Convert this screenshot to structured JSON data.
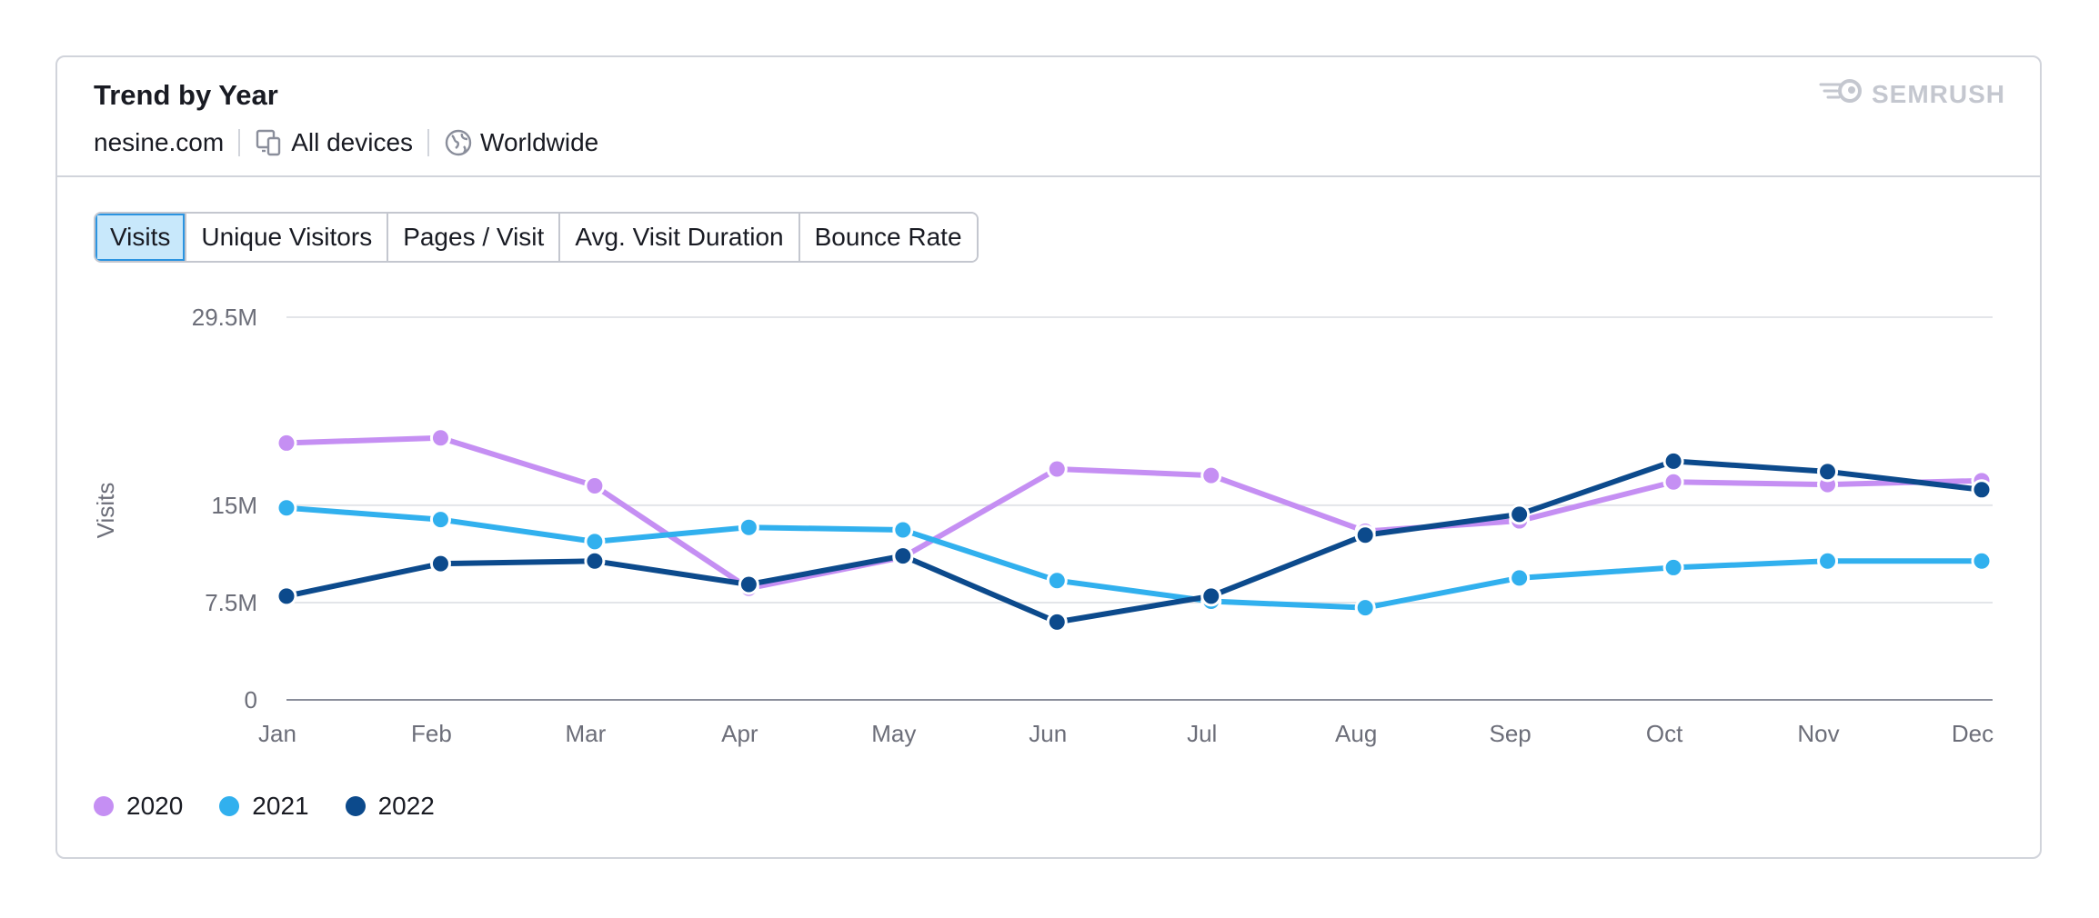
{
  "header": {
    "title": "Trend by Year",
    "domain": "nesine.com",
    "devices": "All devices",
    "region": "Worldwide",
    "brand": "SEMRUSH"
  },
  "icons": {
    "devices": "devices-icon",
    "region": "globe-icon",
    "brand": "semrush-logo-icon"
  },
  "tabs": [
    {
      "label": "Visits",
      "active": true
    },
    {
      "label": "Unique Visitors",
      "active": false
    },
    {
      "label": "Pages / Visit",
      "active": false
    },
    {
      "label": "Avg. Visit Duration",
      "active": false
    },
    {
      "label": "Bounce Rate",
      "active": false
    }
  ],
  "chart_data": {
    "type": "line",
    "title": "",
    "xlabel": "",
    "ylabel": "Visits",
    "ylim": [
      0,
      29.5
    ],
    "yticks": [
      {
        "value": 0,
        "label": "0"
      },
      {
        "value": 7.5,
        "label": "7.5M"
      },
      {
        "value": 15,
        "label": "15M"
      },
      {
        "value": 29.5,
        "label": "29.5M"
      }
    ],
    "grid": true,
    "legend_position": "bottom-left",
    "categories": [
      "Jan",
      "Feb",
      "Mar",
      "Apr",
      "May",
      "Jun",
      "Jul",
      "Aug",
      "Sep",
      "Oct",
      "Nov",
      "Dec"
    ],
    "series": [
      {
        "name": "2020",
        "color": "#c58ff3",
        "values": [
          19.8,
          20.2,
          16.5,
          8.6,
          11.0,
          17.8,
          17.3,
          13.0,
          13.8,
          16.8,
          16.6,
          16.9
        ]
      },
      {
        "name": "2021",
        "color": "#31b0ee",
        "values": [
          14.8,
          13.9,
          12.2,
          13.3,
          13.1,
          9.2,
          7.6,
          7.1,
          9.4,
          10.2,
          10.7,
          10.7
        ]
      },
      {
        "name": "2022",
        "color": "#0c4a8c",
        "values": [
          8.0,
          10.5,
          10.7,
          8.9,
          11.1,
          6.0,
          8.0,
          12.7,
          14.3,
          18.4,
          17.6,
          16.2
        ]
      }
    ]
  }
}
